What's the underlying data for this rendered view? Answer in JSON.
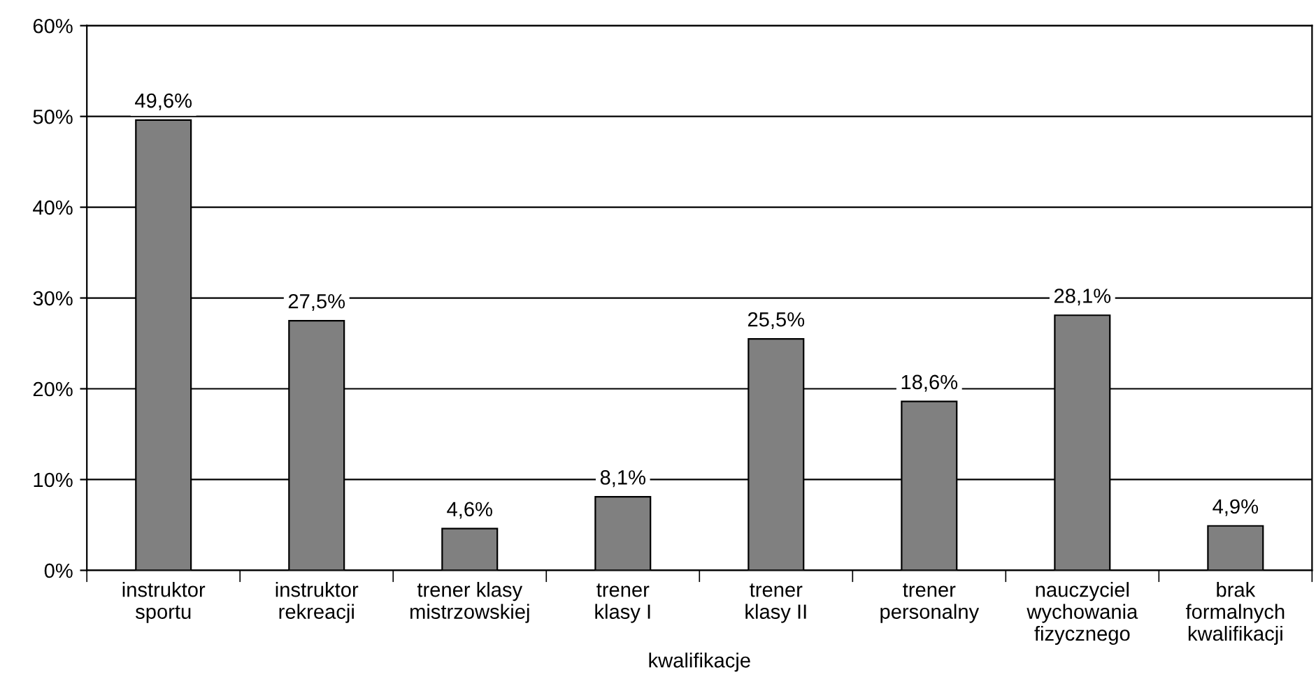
{
  "chart_data": {
    "type": "bar",
    "xlabel": "kwalifikacje",
    "categories": [
      "instruktor\nsportu",
      "instruktor\nrekreacji",
      "trener klasy\nmistrzowskiej",
      "trener\nklasy I",
      "trener\nklasy II",
      "trener\npersonalny",
      "nauczyciel\nwychowania\nfizycznego",
      "brak\nformalnych\nkwalifikacji"
    ],
    "values": [
      49.6,
      27.5,
      4.6,
      8.1,
      25.5,
      18.6,
      28.1,
      4.9
    ],
    "value_labels": [
      "49,6%",
      "27,5%",
      "4,6%",
      "8,1%",
      "25,5%",
      "18,6%",
      "28,1%",
      "4,9%"
    ],
    "color": "#808080",
    "ylim": [
      0,
      60
    ],
    "yticks": [
      {
        "value": 0,
        "label": "0%"
      },
      {
        "value": 10,
        "label": "10%"
      },
      {
        "value": 20,
        "label": "20%"
      },
      {
        "value": 30,
        "label": "30%"
      },
      {
        "value": 40,
        "label": "40%"
      },
      {
        "value": 50,
        "label": "50%"
      },
      {
        "value": 60,
        "label": "60%"
      }
    ],
    "grid": "y",
    "legend": false
  }
}
